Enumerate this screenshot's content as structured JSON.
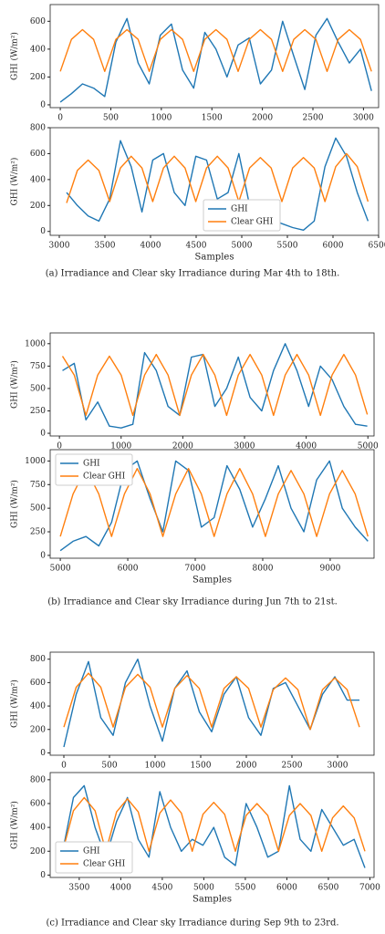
{
  "chart_data": [
    {
      "type": "line",
      "ylabel": "GHI (W/m²)",
      "xlim": [
        -100,
        3150
      ],
      "ylim": [
        -20,
        720
      ],
      "xticks": [
        0,
        500,
        1000,
        1500,
        2000,
        2500,
        3000
      ],
      "yticks": [
        0,
        200,
        400,
        600
      ],
      "x": [
        0,
        110,
        220,
        330,
        440,
        550,
        660,
        770,
        880,
        990,
        1100,
        1210,
        1320,
        1430,
        1540,
        1650,
        1760,
        1870,
        1980,
        2090,
        2200,
        2310,
        2420,
        2530,
        2640,
        2750,
        2860,
        2970,
        3080
      ],
      "series": [
        {
          "color": "#1f77b4",
          "values": [
            20,
            80,
            150,
            120,
            60,
            450,
            620,
            300,
            150,
            500,
            580,
            250,
            120,
            520,
            400,
            200,
            430,
            480,
            150,
            250,
            600,
            350,
            110,
            500,
            620,
            450,
            300,
            400,
            100
          ]
        },
        {
          "color": "#ff7f0e",
          "values": [
            240,
            470,
            540,
            470,
            240,
            470,
            540,
            470,
            240,
            470,
            540,
            470,
            240,
            470,
            540,
            470,
            240,
            470,
            540,
            470,
            240,
            470,
            540,
            470,
            240,
            470,
            540,
            470,
            240
          ]
        }
      ]
    },
    {
      "type": "line",
      "ylabel": "GHI (W/m²)",
      "xlabel": "Samples",
      "legend": "lower center",
      "xlim": [
        2900,
        6500
      ],
      "ylim": [
        -30,
        800
      ],
      "xticks": [
        3000,
        3500,
        4000,
        4500,
        5000,
        5500,
        6000,
        6500
      ],
      "yticks": [
        0,
        200,
        400,
        600,
        800
      ],
      "x": [
        3080,
        3198,
        3316,
        3434,
        3552,
        3670,
        3788,
        3906,
        4024,
        4142,
        4260,
        4378,
        4496,
        4614,
        4732,
        4850,
        4968,
        5086,
        5204,
        5322,
        5440,
        5558,
        5676,
        5794,
        5912,
        6030,
        6148,
        6266,
        6384
      ],
      "series": [
        {
          "name": "GHI",
          "color": "#1f77b4",
          "values": [
            300,
            200,
            120,
            80,
            250,
            700,
            500,
            150,
            550,
            600,
            300,
            200,
            580,
            550,
            250,
            300,
            600,
            200,
            80,
            100,
            60,
            30,
            10,
            80,
            500,
            720,
            580,
            300,
            80
          ]
        },
        {
          "name": "Clear GHI",
          "color": "#ff7f0e",
          "values": [
            220,
            470,
            550,
            470,
            230,
            490,
            580,
            490,
            230,
            490,
            580,
            490,
            230,
            490,
            580,
            490,
            230,
            490,
            570,
            490,
            230,
            490,
            570,
            490,
            230,
            500,
            600,
            500,
            230
          ]
        }
      ]
    },
    {
      "type": "line",
      "ylabel": "GHI (W/m²)",
      "xlim": [
        -150,
        5100
      ],
      "ylim": [
        -30,
        1120
      ],
      "xticks": [
        0,
        1000,
        2000,
        3000,
        4000,
        5000
      ],
      "yticks": [
        0,
        250,
        500,
        750,
        1000
      ],
      "x": [
        50,
        240,
        430,
        620,
        810,
        1000,
        1190,
        1380,
        1570,
        1760,
        1950,
        2140,
        2330,
        2520,
        2710,
        2900,
        3090,
        3280,
        3470,
        3660,
        3850,
        4040,
        4230,
        4420,
        4610,
        4800,
        4990
      ],
      "series": [
        {
          "color": "#1f77b4",
          "values": [
            700,
            780,
            150,
            350,
            80,
            60,
            100,
            900,
            700,
            300,
            200,
            850,
            880,
            300,
            500,
            850,
            400,
            250,
            700,
            1000,
            700,
            300,
            750,
            600,
            300,
            100,
            80
          ]
        },
        {
          "color": "#ff7f0e",
          "values": [
            860,
            650,
            200,
            650,
            860,
            650,
            200,
            650,
            880,
            650,
            200,
            650,
            880,
            650,
            200,
            650,
            880,
            650,
            200,
            650,
            880,
            650,
            200,
            650,
            880,
            650,
            210
          ]
        }
      ]
    },
    {
      "type": "line",
      "ylabel": "GHI (W/m²)",
      "xlabel": "Samples",
      "legend": "upper left",
      "xlim": [
        4850,
        9650
      ],
      "ylim": [
        -30,
        1120
      ],
      "xticks": [
        5000,
        6000,
        7000,
        8000,
        9000
      ],
      "yticks": [
        0,
        250,
        500,
        750,
        1000
      ],
      "x": [
        5000,
        5190,
        5380,
        5570,
        5760,
        5950,
        6140,
        6330,
        6520,
        6710,
        6900,
        7090,
        7280,
        7470,
        7660,
        7850,
        8040,
        8230,
        8420,
        8610,
        8800,
        8990,
        9180,
        9370,
        9560
      ],
      "series": [
        {
          "name": "GHI",
          "color": "#1f77b4",
          "values": [
            50,
            150,
            200,
            100,
            350,
            900,
            1000,
            600,
            250,
            1000,
            900,
            300,
            400,
            950,
            700,
            300,
            600,
            950,
            500,
            250,
            800,
            1000,
            500,
            300,
            150
          ]
        },
        {
          "name": "Clear GHI",
          "color": "#ff7f0e",
          "values": [
            200,
            650,
            920,
            650,
            200,
            650,
            920,
            650,
            200,
            650,
            920,
            650,
            200,
            650,
            920,
            650,
            200,
            650,
            900,
            650,
            200,
            650,
            900,
            650,
            200
          ]
        }
      ]
    },
    {
      "type": "line",
      "ylabel": "GHI (W/m²)",
      "xlim": [
        -150,
        3400
      ],
      "ylim": [
        -20,
        860
      ],
      "xticks": [
        0,
        500,
        1000,
        1500,
        2000,
        2500,
        3000
      ],
      "yticks": [
        0,
        200,
        400,
        600,
        800
      ],
      "x": [
        0,
        135,
        270,
        405,
        540,
        675,
        810,
        945,
        1080,
        1215,
        1350,
        1485,
        1620,
        1755,
        1890,
        2025,
        2160,
        2295,
        2430,
        2565,
        2700,
        2835,
        2970,
        3105,
        3240
      ],
      "series": [
        {
          "color": "#1f77b4",
          "values": [
            50,
            500,
            780,
            300,
            150,
            600,
            800,
            400,
            100,
            550,
            700,
            350,
            180,
            500,
            650,
            300,
            150,
            550,
            600,
            400,
            200,
            500,
            650,
            450,
            450
          ]
        },
        {
          "color": "#ff7f0e",
          "values": [
            220,
            560,
            680,
            560,
            220,
            560,
            670,
            560,
            220,
            550,
            660,
            550,
            220,
            550,
            650,
            550,
            220,
            540,
            640,
            540,
            200,
            540,
            640,
            540,
            220
          ]
        }
      ]
    },
    {
      "type": "line",
      "ylabel": "GHI (W/m²)",
      "xlabel": "Samples",
      "legend": "lower left",
      "xlim": [
        3150,
        7050
      ],
      "ylim": [
        -20,
        860
      ],
      "xticks": [
        3500,
        4000,
        4500,
        5000,
        5500,
        6000,
        6500,
        7000
      ],
      "yticks": [
        0,
        200,
        400,
        600,
        800
      ],
      "x": [
        3300,
        3430,
        3560,
        3690,
        3820,
        3950,
        4080,
        4210,
        4340,
        4470,
        4600,
        4730,
        4860,
        4990,
        5120,
        5250,
        5380,
        5510,
        5640,
        5770,
        5900,
        6030,
        6160,
        6290,
        6420,
        6550,
        6680,
        6810,
        6940
      ],
      "series": [
        {
          "name": "GHI",
          "color": "#1f77b4",
          "values": [
            200,
            650,
            750,
            400,
            150,
            450,
            650,
            300,
            150,
            700,
            400,
            200,
            300,
            250,
            400,
            150,
            80,
            600,
            400,
            150,
            200,
            750,
            300,
            200,
            550,
            400,
            250,
            300,
            60
          ]
        },
        {
          "name": "Clear GHI",
          "color": "#ff7f0e",
          "values": [
            200,
            540,
            650,
            540,
            200,
            530,
            640,
            530,
            200,
            520,
            630,
            520,
            200,
            510,
            610,
            510,
            200,
            500,
            600,
            500,
            200,
            500,
            600,
            500,
            200,
            480,
            580,
            480,
            200
          ]
        }
      ]
    }
  ],
  "captions": [
    "(a) Irradiance and Clear sky Irradiance during Mar 4th to 18th.",
    "(b) Irradiance and Clear sky Irradiance during Jun 7th to 21st.",
    "(c) Irradiance and Clear sky Irradiance during Sep 9th to 23rd."
  ]
}
